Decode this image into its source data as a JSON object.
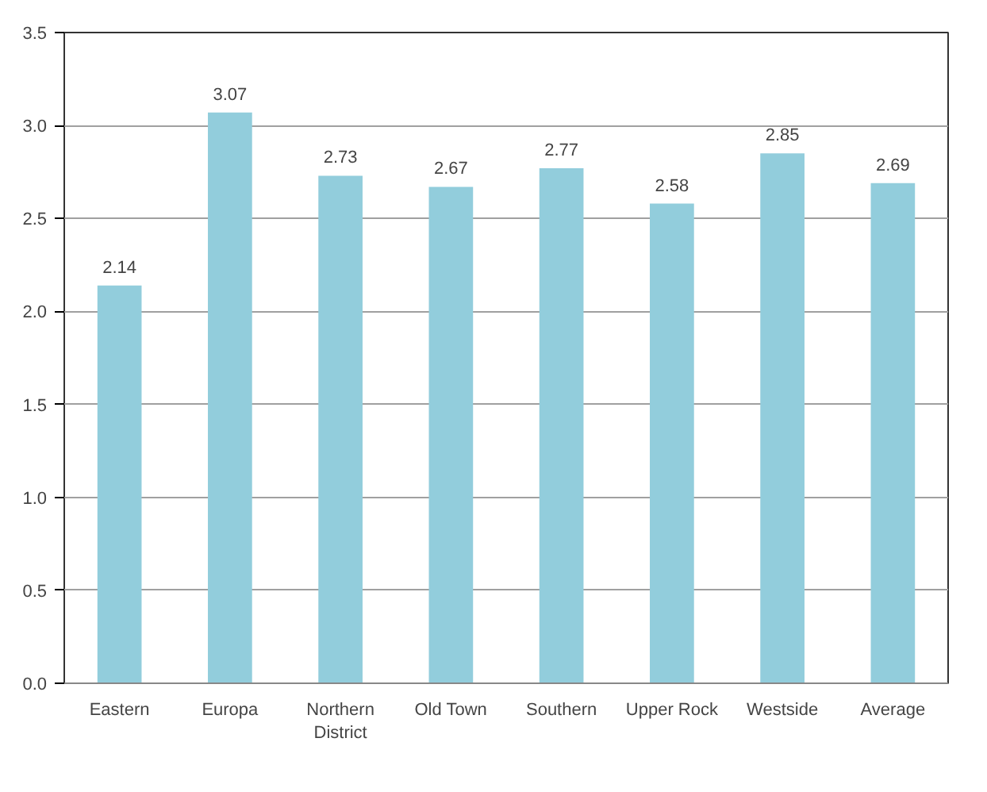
{
  "chart_data": {
    "type": "bar",
    "categories": [
      "Eastern",
      "Europa",
      "Northern District",
      "Old Town",
      "Southern",
      "Upper Rock",
      "Westside",
      "Average"
    ],
    "values": [
      2.14,
      3.07,
      2.73,
      2.67,
      2.77,
      2.58,
      2.85,
      2.69
    ],
    "color": "#92cddc",
    "ylim": [
      0,
      3.5
    ],
    "yticks": [
      {
        "value": 0,
        "label": "0.0"
      },
      {
        "value": 0.5,
        "label": "0.5"
      },
      {
        "value": 1,
        "label": "1.0"
      },
      {
        "value": 1.5,
        "label": "1.5"
      },
      {
        "value": 2,
        "label": "2.0"
      },
      {
        "value": 2.5,
        "label": "2.5"
      },
      {
        "value": 3,
        "label": "3.0"
      },
      {
        "value": 3.5,
        "label": "3.5"
      }
    ],
    "grid": "y",
    "data_labels": true
  }
}
